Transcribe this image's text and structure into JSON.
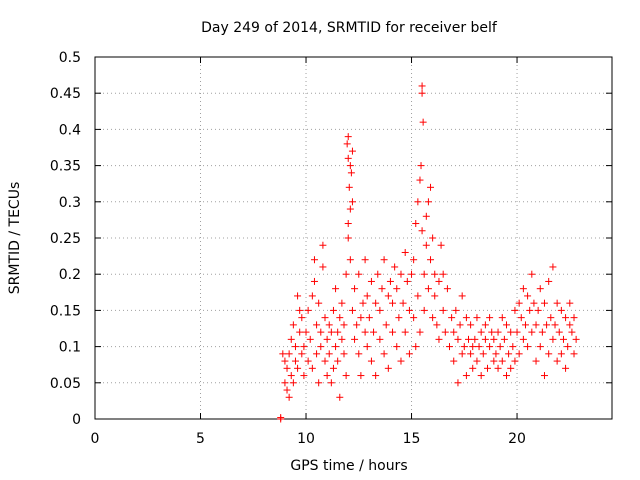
{
  "chart_data": {
    "type": "scatter",
    "title": "Day 249 of 2014, SRMTID for receiver belf",
    "xlabel": "GPS time / hours",
    "ylabel": "SRMTID / TECUs",
    "xlim": [
      0,
      24.5
    ],
    "ylim": [
      0,
      0.5
    ],
    "xticks": [
      0,
      5,
      10,
      15,
      20
    ],
    "yticks": [
      0,
      0.05,
      0.1,
      0.15,
      0.2,
      0.25,
      0.3,
      0.35,
      0.4,
      0.45,
      0.5
    ],
    "ytick_labels": [
      "0",
      "0.05",
      "0.1",
      "0.15",
      "0.2",
      "0.25",
      "0.3",
      "0.35",
      "0.4",
      "0.45",
      "0.5"
    ],
    "grid": true,
    "marker": "+",
    "color": "#ff0000",
    "series": [
      {
        "name": "SRMTID",
        "points": [
          [
            8.8,
            0.0
          ],
          [
            8.8,
            0.002
          ],
          [
            8.9,
            0.09
          ],
          [
            9.0,
            0.05
          ],
          [
            9.0,
            0.08
          ],
          [
            9.1,
            0.04
          ],
          [
            9.1,
            0.07
          ],
          [
            9.2,
            0.03
          ],
          [
            9.2,
            0.09
          ],
          [
            9.3,
            0.06
          ],
          [
            9.3,
            0.11
          ],
          [
            9.4,
            0.05
          ],
          [
            9.4,
            0.13
          ],
          [
            9.5,
            0.08
          ],
          [
            9.5,
            0.1
          ],
          [
            9.6,
            0.07
          ],
          [
            9.6,
            0.17
          ],
          [
            9.7,
            0.12
          ],
          [
            9.7,
            0.15
          ],
          [
            9.8,
            0.09
          ],
          [
            9.8,
            0.14
          ],
          [
            9.9,
            0.1
          ],
          [
            9.9,
            0.06
          ],
          [
            10.0,
            0.12
          ],
          [
            10.1,
            0.08
          ],
          [
            10.1,
            0.15
          ],
          [
            10.2,
            0.11
          ],
          [
            10.3,
            0.17
          ],
          [
            10.3,
            0.07
          ],
          [
            10.4,
            0.22
          ],
          [
            10.4,
            0.19
          ],
          [
            10.5,
            0.13
          ],
          [
            10.5,
            0.09
          ],
          [
            10.6,
            0.05
          ],
          [
            10.6,
            0.16
          ],
          [
            10.7,
            0.12
          ],
          [
            10.7,
            0.1
          ],
          [
            10.8,
            0.24
          ],
          [
            10.8,
            0.21
          ],
          [
            10.9,
            0.14
          ],
          [
            10.9,
            0.08
          ],
          [
            11.0,
            0.11
          ],
          [
            11.0,
            0.06
          ],
          [
            11.1,
            0.09
          ],
          [
            11.1,
            0.13
          ],
          [
            11.2,
            0.05
          ],
          [
            11.2,
            0.12
          ],
          [
            11.3,
            0.07
          ],
          [
            11.3,
            0.15
          ],
          [
            11.4,
            0.1
          ],
          [
            11.4,
            0.18
          ],
          [
            11.5,
            0.12
          ],
          [
            11.5,
            0.08
          ],
          [
            11.6,
            0.14
          ],
          [
            11.6,
            0.03
          ],
          [
            11.7,
            0.11
          ],
          [
            11.7,
            0.16
          ],
          [
            11.8,
            0.09
          ],
          [
            11.8,
            0.13
          ],
          [
            11.9,
            0.2
          ],
          [
            11.9,
            0.06
          ],
          [
            11.95,
            0.38
          ],
          [
            12.0,
            0.36
          ],
          [
            12.0,
            0.39
          ],
          [
            12.05,
            0.32
          ],
          [
            12.1,
            0.35
          ],
          [
            12.1,
            0.29
          ],
          [
            12.15,
            0.34
          ],
          [
            12.2,
            0.3
          ],
          [
            12.2,
            0.37
          ],
          [
            12.0,
            0.25
          ],
          [
            12.1,
            0.22
          ],
          [
            12.0,
            0.27
          ],
          [
            12.2,
            0.15
          ],
          [
            12.3,
            0.11
          ],
          [
            12.3,
            0.18
          ],
          [
            12.4,
            0.13
          ],
          [
            12.5,
            0.09
          ],
          [
            12.5,
            0.2
          ],
          [
            12.6,
            0.14
          ],
          [
            12.6,
            0.06
          ],
          [
            12.7,
            0.16
          ],
          [
            12.8,
            0.12
          ],
          [
            12.8,
            0.22
          ],
          [
            12.9,
            0.1
          ],
          [
            12.9,
            0.17
          ],
          [
            13.0,
            0.14
          ],
          [
            13.1,
            0.08
          ],
          [
            13.1,
            0.19
          ],
          [
            13.2,
            0.12
          ],
          [
            13.3,
            0.16
          ],
          [
            13.3,
            0.06
          ],
          [
            13.4,
            0.2
          ],
          [
            13.5,
            0.11
          ],
          [
            13.5,
            0.15
          ],
          [
            13.6,
            0.18
          ],
          [
            13.7,
            0.09
          ],
          [
            13.7,
            0.22
          ],
          [
            13.8,
            0.13
          ],
          [
            13.9,
            0.17
          ],
          [
            13.9,
            0.07
          ],
          [
            14.0,
            0.19
          ],
          [
            14.1,
            0.12
          ],
          [
            14.1,
            0.16
          ],
          [
            14.2,
            0.21
          ],
          [
            14.3,
            0.1
          ],
          [
            14.3,
            0.18
          ],
          [
            14.4,
            0.14
          ],
          [
            14.5,
            0.2
          ],
          [
            14.5,
            0.08
          ],
          [
            14.6,
            0.16
          ],
          [
            14.7,
            0.23
          ],
          [
            14.7,
            0.12
          ],
          [
            14.8,
            0.19
          ],
          [
            14.9,
            0.15
          ],
          [
            14.9,
            0.09
          ],
          [
            15.0,
            0.2
          ],
          [
            15.1,
            0.14
          ],
          [
            15.1,
            0.22
          ],
          [
            15.2,
            0.1
          ],
          [
            15.2,
            0.27
          ],
          [
            15.3,
            0.17
          ],
          [
            15.3,
            0.3
          ],
          [
            15.4,
            0.12
          ],
          [
            15.4,
            0.33
          ],
          [
            15.45,
            0.35
          ],
          [
            15.5,
            0.45
          ],
          [
            15.5,
            0.46
          ],
          [
            15.55,
            0.41
          ],
          [
            15.5,
            0.26
          ],
          [
            15.6,
            0.2
          ],
          [
            15.6,
            0.15
          ],
          [
            15.7,
            0.28
          ],
          [
            15.7,
            0.24
          ],
          [
            15.8,
            0.3
          ],
          [
            15.8,
            0.18
          ],
          [
            15.9,
            0.32
          ],
          [
            15.9,
            0.22
          ],
          [
            16.0,
            0.25
          ],
          [
            16.0,
            0.14
          ],
          [
            16.1,
            0.2
          ],
          [
            16.1,
            0.17
          ],
          [
            16.2,
            0.13
          ],
          [
            16.3,
            0.19
          ],
          [
            16.3,
            0.11
          ],
          [
            16.4,
            0.24
          ],
          [
            16.5,
            0.15
          ],
          [
            16.5,
            0.2
          ],
          [
            16.6,
            0.12
          ],
          [
            16.7,
            0.18
          ],
          [
            16.8,
            0.1
          ],
          [
            16.9,
            0.14
          ],
          [
            17.0,
            0.12
          ],
          [
            17.0,
            0.08
          ],
          [
            17.1,
            0.15
          ],
          [
            17.2,
            0.11
          ],
          [
            17.2,
            0.05
          ],
          [
            17.3,
            0.13
          ],
          [
            17.4,
            0.09
          ],
          [
            17.4,
            0.17
          ],
          [
            17.5,
            0.1
          ],
          [
            17.6,
            0.14
          ],
          [
            17.6,
            0.06
          ],
          [
            17.7,
            0.11
          ],
          [
            17.8,
            0.09
          ],
          [
            17.8,
            0.13
          ],
          [
            17.9,
            0.1
          ],
          [
            17.9,
            0.07
          ],
          [
            18.0,
            0.11
          ],
          [
            18.1,
            0.08
          ],
          [
            18.1,
            0.14
          ],
          [
            18.2,
            0.1
          ],
          [
            18.3,
            0.12
          ],
          [
            18.3,
            0.06
          ],
          [
            18.4,
            0.09
          ],
          [
            18.5,
            0.13
          ],
          [
            18.5,
            0.11
          ],
          [
            18.6,
            0.07
          ],
          [
            18.7,
            0.1
          ],
          [
            18.7,
            0.14
          ],
          [
            18.8,
            0.12
          ],
          [
            18.9,
            0.08
          ],
          [
            18.9,
            0.11
          ],
          [
            19.0,
            0.09
          ],
          [
            19.1,
            0.12
          ],
          [
            19.1,
            0.07
          ],
          [
            19.2,
            0.1
          ],
          [
            19.3,
            0.14
          ],
          [
            19.3,
            0.08
          ],
          [
            19.4,
            0.11
          ],
          [
            19.5,
            0.06
          ],
          [
            19.5,
            0.13
          ],
          [
            19.6,
            0.09
          ],
          [
            19.7,
            0.12
          ],
          [
            19.7,
            0.07
          ],
          [
            19.8,
            0.1
          ],
          [
            19.9,
            0.15
          ],
          [
            19.9,
            0.08
          ],
          [
            20.0,
            0.12
          ],
          [
            20.1,
            0.16
          ],
          [
            20.1,
            0.09
          ],
          [
            20.2,
            0.14
          ],
          [
            20.3,
            0.18
          ],
          [
            20.3,
            0.11
          ],
          [
            20.4,
            0.13
          ],
          [
            20.5,
            0.17
          ],
          [
            20.5,
            0.1
          ],
          [
            20.6,
            0.15
          ],
          [
            20.7,
            0.2
          ],
          [
            20.7,
            0.12
          ],
          [
            20.8,
            0.16
          ],
          [
            20.9,
            0.08
          ],
          [
            20.9,
            0.13
          ],
          [
            21.0,
            0.15
          ],
          [
            21.1,
            0.1
          ],
          [
            21.1,
            0.18
          ],
          [
            21.2,
            0.12
          ],
          [
            21.3,
            0.16
          ],
          [
            21.3,
            0.06
          ],
          [
            21.4,
            0.13
          ],
          [
            21.5,
            0.19
          ],
          [
            21.5,
            0.09
          ],
          [
            21.6,
            0.14
          ],
          [
            21.7,
            0.11
          ],
          [
            21.7,
            0.21
          ],
          [
            21.8,
            0.13
          ],
          [
            21.9,
            0.08
          ],
          [
            21.9,
            0.16
          ],
          [
            22.0,
            0.12
          ],
          [
            22.1,
            0.09
          ],
          [
            22.1,
            0.15
          ],
          [
            22.2,
            0.11
          ],
          [
            22.3,
            0.07
          ],
          [
            22.3,
            0.14
          ],
          [
            22.4,
            0.1
          ],
          [
            22.5,
            0.13
          ],
          [
            22.5,
            0.16
          ],
          [
            22.6,
            0.12
          ],
          [
            22.7,
            0.09
          ],
          [
            22.7,
            0.14
          ],
          [
            22.8,
            0.11
          ]
        ]
      }
    ]
  }
}
